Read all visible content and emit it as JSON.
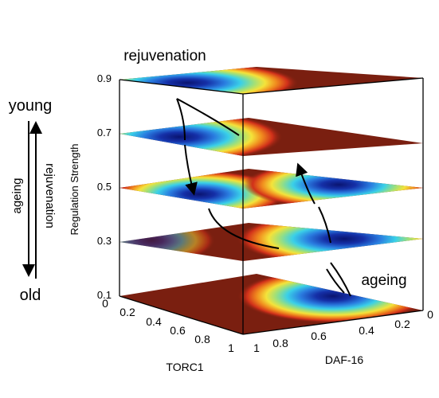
{
  "title": "rejuvenation",
  "annotation_ageing": "ageing",
  "vertical_axis": {
    "label": "Regulation Strength",
    "ticks": [
      "0.9",
      "0.7",
      "0.5",
      "0.3",
      "0.1"
    ]
  },
  "x_axis": {
    "label": "TORC1",
    "ticks": [
      "0",
      "0.2",
      "0.4",
      "0.6",
      "0.8",
      "1"
    ]
  },
  "y_axis": {
    "label": "DAF-16",
    "ticks": [
      "1",
      "0.8",
      "0.6",
      "0.4",
      "0.2",
      "0"
    ]
  },
  "legend": {
    "top": "young",
    "bottom": "old",
    "left_arrow": "ageing",
    "right_arrow": "rejuvenation"
  },
  "colors": {
    "plane_background": "#7a1f10",
    "well_center": "#0b1a7a",
    "trajectory": "#000000"
  }
}
